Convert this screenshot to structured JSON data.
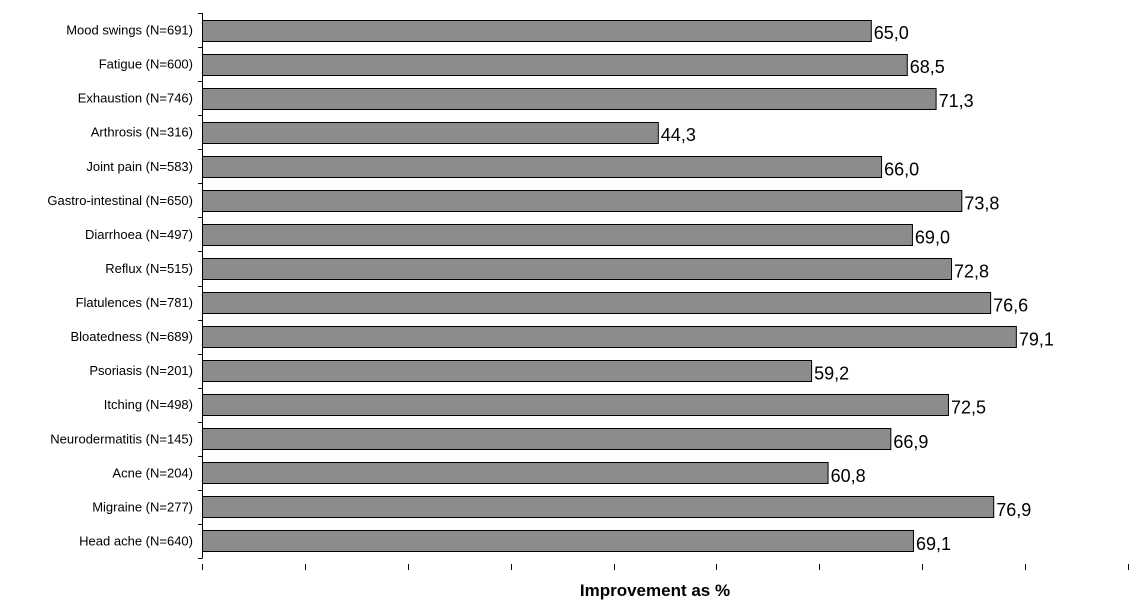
{
  "chart_data": {
    "type": "bar",
    "orientation": "horizontal",
    "xlabel": "Improvement as %",
    "xlim": [
      0,
      90
    ],
    "x_tick_step": 10,
    "grid": false,
    "bar_color": "#8c8c8c",
    "bar_edge_color": "#000000",
    "categories": [
      "Mood swings (N=691)",
      "Fatigue (N=600)",
      "Exhaustion (N=746)",
      "Arthrosis (N=316)",
      "Joint pain (N=583)",
      "Gastro-intestinal (N=650)",
      "Diarrhoea (N=497)",
      "Reflux (N=515)",
      "Flatulences (N=781)",
      "Bloatedness (N=689)",
      "Psoriasis (N=201)",
      "Itching (N=498)",
      "Neurodermatitis (N=145)",
      "Acne (N=204)",
      "Migraine (N=277)",
      "Head ache (N=640)"
    ],
    "values": [
      65.0,
      68.5,
      71.3,
      44.3,
      66.0,
      73.8,
      69.0,
      72.8,
      76.6,
      79.1,
      59.2,
      72.5,
      66.9,
      60.8,
      76.9,
      69.1
    ],
    "value_labels": [
      "65,0",
      "68,5",
      "71,3",
      "44,3",
      "66,0",
      "73,8",
      "69,0",
      "72,8",
      "76,6",
      "79,1",
      "59,2",
      "72,5",
      "66,9",
      "60,8",
      "76,9",
      "69,1"
    ]
  }
}
